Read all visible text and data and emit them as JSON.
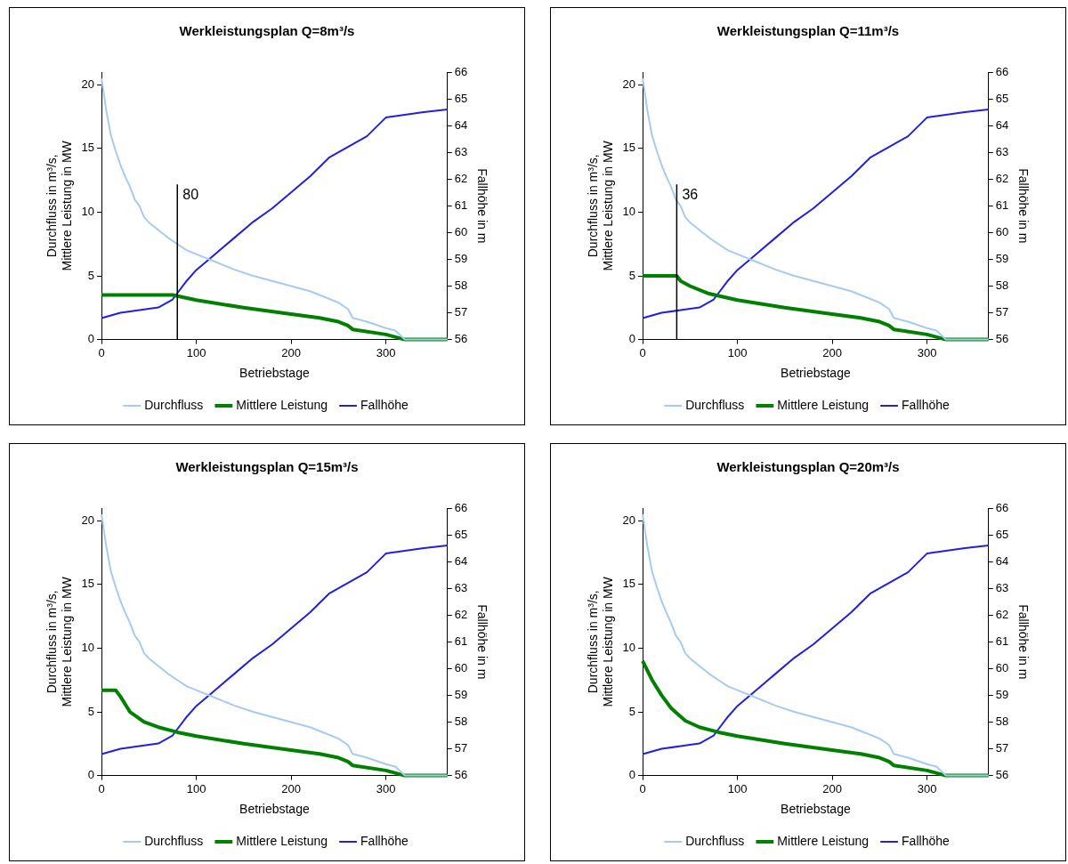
{
  "chart_data": [
    {
      "type": "line",
      "title": "Werkleistungsplan Q=8m³/s",
      "xlabel": "Betriebstage",
      "ylabel": "Durchfluss in m³/s,\nMittlere Leistung in MW",
      "y2label": "Fallhöhe in m",
      "xlim": [
        0,
        365
      ],
      "xticks": [
        0,
        100,
        200,
        300
      ],
      "ylim": [
        0,
        21
      ],
      "yticks": [
        0,
        5,
        10,
        15,
        20
      ],
      "y2lim": [
        56,
        66
      ],
      "y2ticks": [
        56,
        57,
        58,
        59,
        60,
        61,
        62,
        63,
        64,
        65,
        66
      ],
      "grid": false,
      "legend": "bottom",
      "marker": "none",
      "line_style": "solid",
      "ref_lines": [
        {
          "axis": "x",
          "value": 80,
          "label": "80",
          "color": "#000000"
        }
      ],
      "series": [
        {
          "name": "Durchfluss",
          "color": "#a6cbf0",
          "x": [
            0,
            5,
            10,
            15,
            20,
            25,
            30,
            35,
            40,
            45,
            50,
            60,
            70,
            80,
            90,
            100,
            120,
            140,
            160,
            180,
            200,
            220,
            240,
            250,
            260,
            265,
            280,
            300,
            310,
            320,
            365
          ],
          "values": [
            20.5,
            18,
            16,
            14.8,
            13.7,
            12.8,
            12,
            11,
            10.5,
            9.6,
            9.2,
            8.6,
            8,
            7.5,
            7,
            6.7,
            6.1,
            5.5,
            5,
            4.6,
            4.2,
            3.8,
            3.2,
            2.9,
            2.4,
            1.7,
            1.4,
            0.9,
            0.7,
            0,
            0
          ]
        },
        {
          "name": "Mittlere Leistung",
          "color": "#008000",
          "x": [
            0,
            75,
            100,
            150,
            200,
            230,
            250,
            260,
            265,
            300,
            320,
            365
          ],
          "values": [
            3.5,
            3.5,
            3.1,
            2.5,
            2,
            1.7,
            1.4,
            1.1,
            0.8,
            0.4,
            0,
            0
          ]
        },
        {
          "name": "Fallhöhe",
          "color": "#2020e0",
          "axis": "y2",
          "x": [
            0,
            20,
            40,
            60,
            75,
            90,
            100,
            120,
            140,
            160,
            180,
            200,
            220,
            240,
            260,
            280,
            300,
            320,
            340,
            365
          ],
          "values": [
            56.8,
            57,
            57.1,
            57.2,
            57.5,
            58.2,
            58.6,
            59.2,
            59.8,
            60.4,
            60.9,
            61.5,
            62.1,
            62.8,
            63.2,
            63.6,
            64.3,
            64.4,
            64.5,
            64.6
          ]
        }
      ]
    },
    {
      "type": "line",
      "title": "Werkleistungsplan Q=11m³/s",
      "xlabel": "Betriebstage",
      "ylabel": "Durchfluss in m³/s,\nMittlere Leistung in MW",
      "y2label": "Fallhöhe in m",
      "xlim": [
        0,
        365
      ],
      "xticks": [
        0,
        100,
        200,
        300
      ],
      "ylim": [
        0,
        21
      ],
      "yticks": [
        0,
        5,
        10,
        15,
        20
      ],
      "y2lim": [
        56,
        66
      ],
      "y2ticks": [
        56,
        57,
        58,
        59,
        60,
        61,
        62,
        63,
        64,
        65,
        66
      ],
      "grid": false,
      "legend": "bottom",
      "marker": "none",
      "line_style": "solid",
      "ref_lines": [
        {
          "axis": "x",
          "value": 36,
          "label": "36",
          "color": "#000000"
        }
      ],
      "series": [
        {
          "name": "Durchfluss",
          "color": "#a6cbf0",
          "x": [
            0,
            5,
            10,
            15,
            20,
            25,
            30,
            35,
            40,
            45,
            50,
            60,
            70,
            80,
            90,
            100,
            120,
            140,
            160,
            180,
            200,
            220,
            240,
            250,
            260,
            265,
            280,
            300,
            310,
            320,
            365
          ],
          "values": [
            20.5,
            18,
            16,
            14.8,
            13.7,
            12.8,
            12,
            11,
            10.5,
            9.6,
            9.2,
            8.6,
            8,
            7.5,
            7,
            6.7,
            6.1,
            5.5,
            5,
            4.6,
            4.2,
            3.8,
            3.2,
            2.9,
            2.4,
            1.7,
            1.4,
            0.9,
            0.7,
            0,
            0
          ]
        },
        {
          "name": "Mittlere Leistung",
          "color": "#008000",
          "x": [
            0,
            36,
            40,
            50,
            70,
            100,
            150,
            200,
            230,
            250,
            260,
            265,
            300,
            320,
            365
          ],
          "values": [
            5,
            5,
            4.6,
            4.2,
            3.6,
            3.1,
            2.5,
            2,
            1.7,
            1.4,
            1.1,
            0.8,
            0.4,
            0,
            0
          ]
        },
        {
          "name": "Fallhöhe",
          "color": "#2020e0",
          "axis": "y2",
          "x": [
            0,
            20,
            40,
            60,
            75,
            90,
            100,
            120,
            140,
            160,
            180,
            200,
            220,
            240,
            260,
            280,
            300,
            320,
            340,
            365
          ],
          "values": [
            56.8,
            57,
            57.1,
            57.2,
            57.5,
            58.2,
            58.6,
            59.2,
            59.8,
            60.4,
            60.9,
            61.5,
            62.1,
            62.8,
            63.2,
            63.6,
            64.3,
            64.4,
            64.5,
            64.6
          ]
        }
      ]
    },
    {
      "type": "line",
      "title": "Werkleistungsplan Q=15m³/s",
      "xlabel": "Betriebstage",
      "ylabel": "Durchfluss in m³/s,\nMittlere Leistung in MW",
      "y2label": "Fallhöhe in m",
      "xlim": [
        0,
        365
      ],
      "xticks": [
        0,
        100,
        200,
        300
      ],
      "ylim": [
        0,
        21
      ],
      "yticks": [
        0,
        5,
        10,
        15,
        20
      ],
      "y2lim": [
        56,
        66
      ],
      "y2ticks": [
        56,
        57,
        58,
        59,
        60,
        61,
        62,
        63,
        64,
        65,
        66
      ],
      "grid": false,
      "legend": "bottom",
      "marker": "none",
      "line_style": "solid",
      "series": [
        {
          "name": "Durchfluss",
          "color": "#a6cbf0",
          "x": [
            0,
            5,
            10,
            15,
            20,
            25,
            30,
            35,
            40,
            45,
            50,
            60,
            70,
            80,
            90,
            100,
            120,
            140,
            160,
            180,
            200,
            220,
            240,
            250,
            260,
            265,
            280,
            300,
            310,
            320,
            365
          ],
          "values": [
            20.5,
            18,
            16,
            14.8,
            13.7,
            12.8,
            12,
            11,
            10.5,
            9.6,
            9.2,
            8.6,
            8,
            7.5,
            7,
            6.7,
            6.1,
            5.5,
            5,
            4.6,
            4.2,
            3.8,
            3.2,
            2.9,
            2.4,
            1.7,
            1.4,
            0.9,
            0.7,
            0,
            0
          ]
        },
        {
          "name": "Mittlere Leistung",
          "color": "#008000",
          "x": [
            0,
            15,
            20,
            30,
            45,
            60,
            80,
            100,
            150,
            200,
            230,
            250,
            260,
            265,
            300,
            320,
            365
          ],
          "values": [
            6.7,
            6.7,
            6.2,
            5,
            4.2,
            3.8,
            3.4,
            3.1,
            2.5,
            2,
            1.7,
            1.4,
            1.1,
            0.8,
            0.4,
            0,
            0
          ]
        },
        {
          "name": "Fallhöhe",
          "color": "#2020e0",
          "axis": "y2",
          "x": [
            0,
            20,
            40,
            60,
            75,
            90,
            100,
            120,
            140,
            160,
            180,
            200,
            220,
            240,
            260,
            280,
            300,
            320,
            340,
            365
          ],
          "values": [
            56.8,
            57,
            57.1,
            57.2,
            57.5,
            58.2,
            58.6,
            59.2,
            59.8,
            60.4,
            60.9,
            61.5,
            62.1,
            62.8,
            63.2,
            63.6,
            64.3,
            64.4,
            64.5,
            64.6
          ]
        }
      ]
    },
    {
      "type": "line",
      "title": "Werkleistungsplan Q=20m³/s",
      "xlabel": "Betriebstage",
      "ylabel": "Durchfluss in m³/s,\nMittlere Leistung in MW",
      "y2label": "Fallhöhe in m",
      "xlim": [
        0,
        365
      ],
      "xticks": [
        0,
        100,
        200,
        300
      ],
      "ylim": [
        0,
        21
      ],
      "yticks": [
        0,
        5,
        10,
        15,
        20
      ],
      "y2lim": [
        56,
        66
      ],
      "y2ticks": [
        56,
        57,
        58,
        59,
        60,
        61,
        62,
        63,
        64,
        65,
        66
      ],
      "grid": false,
      "legend": "bottom",
      "marker": "none",
      "line_style": "solid",
      "series": [
        {
          "name": "Durchfluss",
          "color": "#a6cbf0",
          "x": [
            0,
            5,
            10,
            15,
            20,
            25,
            30,
            35,
            40,
            45,
            50,
            60,
            70,
            80,
            90,
            100,
            120,
            140,
            160,
            180,
            200,
            220,
            240,
            250,
            260,
            265,
            280,
            300,
            310,
            320,
            365
          ],
          "values": [
            20.5,
            18,
            16,
            14.8,
            13.7,
            12.8,
            12,
            11,
            10.5,
            9.6,
            9.2,
            8.6,
            8,
            7.5,
            7,
            6.7,
            6.1,
            5.5,
            5,
            4.6,
            4.2,
            3.8,
            3.2,
            2.9,
            2.4,
            1.7,
            1.4,
            0.9,
            0.7,
            0,
            0
          ]
        },
        {
          "name": "Mittlere Leistung",
          "color": "#008000",
          "x": [
            0,
            10,
            20,
            30,
            45,
            60,
            80,
            100,
            150,
            200,
            230,
            250,
            260,
            265,
            300,
            320,
            365
          ],
          "values": [
            9,
            7.5,
            6.3,
            5.3,
            4.3,
            3.8,
            3.4,
            3.1,
            2.5,
            2,
            1.7,
            1.4,
            1.1,
            0.8,
            0.4,
            0,
            0
          ]
        },
        {
          "name": "Fallhöhe",
          "color": "#2020e0",
          "axis": "y2",
          "x": [
            0,
            20,
            40,
            60,
            75,
            90,
            100,
            120,
            140,
            160,
            180,
            200,
            220,
            240,
            260,
            280,
            300,
            320,
            340,
            365
          ],
          "values": [
            56.8,
            57,
            57.1,
            57.2,
            57.5,
            58.2,
            58.6,
            59.2,
            59.8,
            60.4,
            60.9,
            61.5,
            62.1,
            62.8,
            63.2,
            63.6,
            64.3,
            64.4,
            64.5,
            64.6
          ]
        }
      ]
    }
  ]
}
